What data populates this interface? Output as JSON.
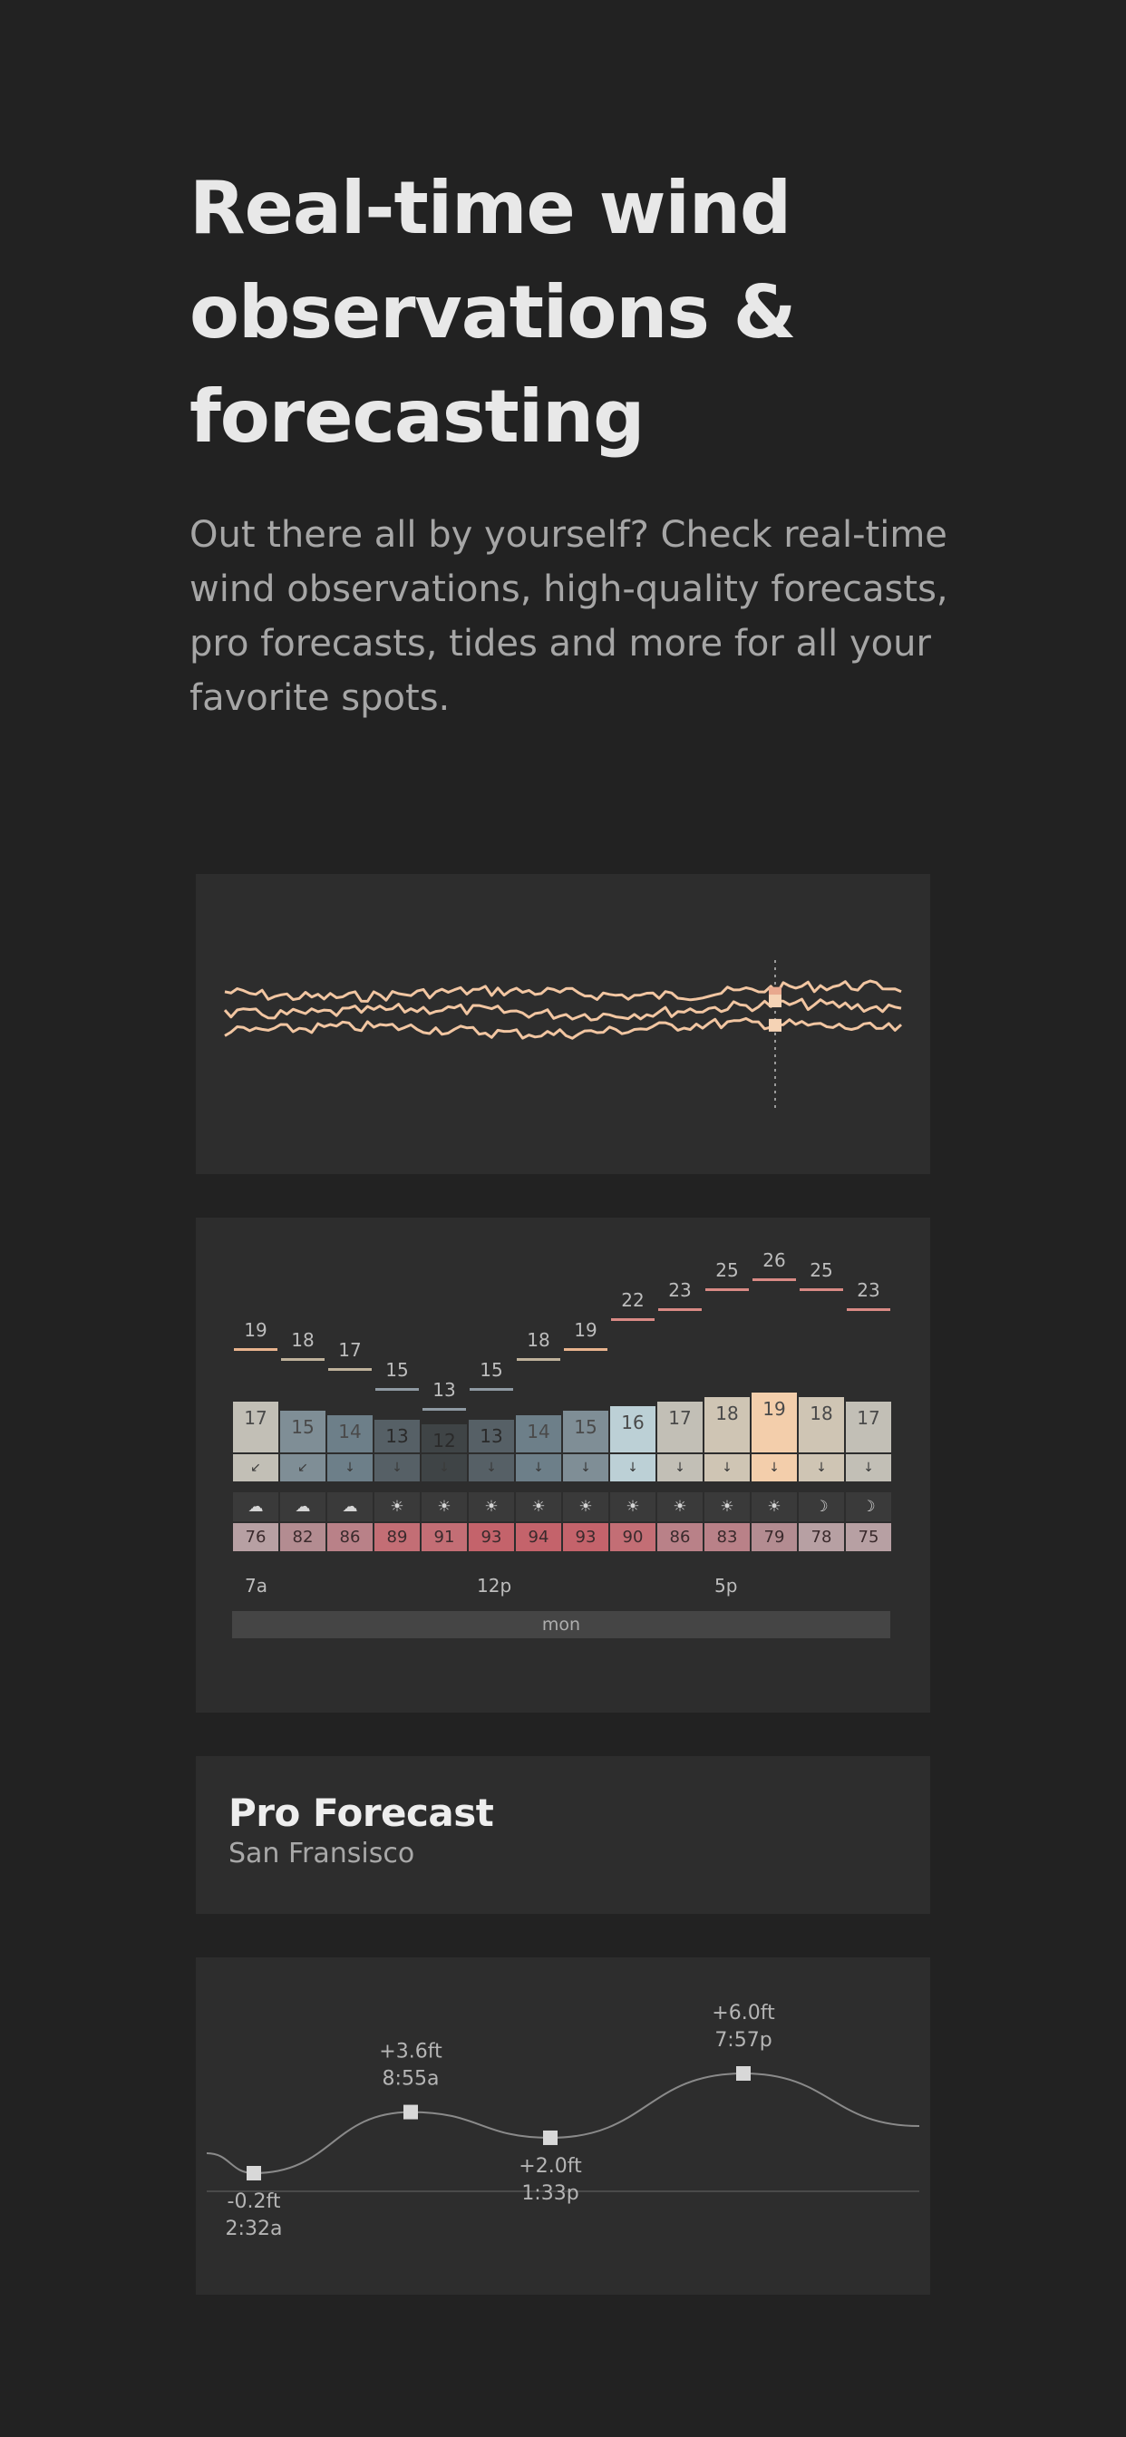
{
  "hero": {
    "title": "Real-time wind observations & forecasting",
    "description": "Out there all by yourself? Check real-time wind observations, high-quality forecasts, pro forecasts, tides and more for all your favorite spots."
  },
  "colors": {
    "background": "#222222",
    "card": "#2d2d2d",
    "accent_peach": "#f2c6a2",
    "temp_hot": "#c4686e",
    "text_muted": "#a6a6a6"
  },
  "wind_chart": {
    "series_count": 3,
    "color": "#f2c6a2",
    "marker_index": 86
  },
  "forecast": {
    "gusts": [
      19,
      18,
      17,
      15,
      13,
      15,
      18,
      19,
      22,
      23,
      25,
      26,
      25,
      23
    ],
    "wind": [
      17,
      15,
      14,
      13,
      12,
      13,
      14,
      15,
      16,
      17,
      18,
      19,
      18,
      17
    ],
    "direction_icons": [
      "arrow-sw-icon",
      "arrow-sw-icon",
      "arrow-s-icon",
      "arrow-s-icon",
      "arrow-s-icon",
      "arrow-s-icon",
      "arrow-s-icon",
      "arrow-s-icon",
      "arrow-s-icon",
      "arrow-s-icon",
      "arrow-s-icon",
      "arrow-s-icon",
      "arrow-s-icon",
      "arrow-s-icon"
    ],
    "weather_icons": [
      "cloud-icon",
      "cloud-icon",
      "cloud-icon",
      "sun-icon",
      "sun-icon",
      "sun-icon",
      "sun-icon",
      "sun-icon",
      "sun-icon",
      "sun-icon",
      "sun-icon",
      "sun-icon",
      "moon-icon",
      "moon-icon"
    ],
    "temps": [
      76,
      82,
      86,
      89,
      91,
      93,
      94,
      93,
      90,
      86,
      83,
      79,
      78,
      75
    ],
    "time_labels": {
      "t0": "7a",
      "t1": "12p",
      "t2": "5p"
    },
    "day": "mon"
  },
  "pro_forecast": {
    "title": "Pro Forecast",
    "location": "San Fransisco"
  },
  "tides": {
    "points": [
      {
        "height": "-0.2ft",
        "time": "2:32a",
        "value": -0.2
      },
      {
        "height": "+3.6ft",
        "time": "8:55a",
        "value": 3.6
      },
      {
        "height": "+2.0ft",
        "time": "1:33p",
        "value": 2.0
      },
      {
        "height": "+6.0ft",
        "time": "7:57p",
        "value": 6.0
      }
    ]
  }
}
